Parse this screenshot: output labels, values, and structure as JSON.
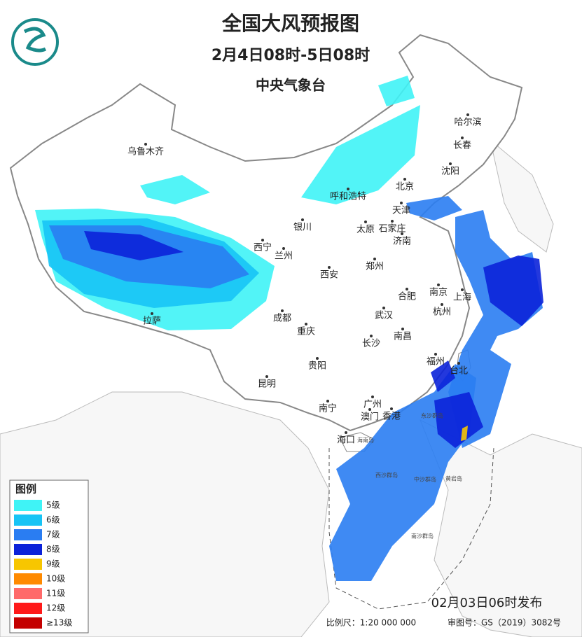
{
  "header": {
    "title": "全国大风预报图",
    "subtitle": "2月4日08时-5日08时",
    "agency": "中央气象台"
  },
  "legend": {
    "title": "图例",
    "items": [
      {
        "label": "5级",
        "color": "#3ff3f6"
      },
      {
        "label": "6级",
        "color": "#17c4f5"
      },
      {
        "label": "7级",
        "color": "#2a7df2"
      },
      {
        "label": "8级",
        "color": "#0b22d9"
      },
      {
        "label": "9级",
        "color": "#f7c600"
      },
      {
        "label": "10级",
        "color": "#ff8a00"
      },
      {
        "label": "11级",
        "color": "#ff6a6a"
      },
      {
        "label": "12级",
        "color": "#ff1a1a"
      },
      {
        "label": "≥13级",
        "color": "#c40000"
      }
    ]
  },
  "cities": [
    "哈尔滨",
    "长春",
    "乌鲁木齐",
    "沈阳",
    "北京",
    "呼和浩特",
    "天津",
    "银川",
    "太原",
    "石家庄",
    "济南",
    "西宁",
    "兰州",
    "郑州",
    "西安",
    "南京",
    "合肥",
    "上海",
    "杭州",
    "拉萨",
    "成都",
    "武汉",
    "重庆",
    "南昌",
    "长沙",
    "福州",
    "台北",
    "贵阳",
    "昆明",
    "南宁",
    "广州",
    "澳门",
    "香港",
    "海口"
  ],
  "islands": [
    "东沙群岛",
    "海南岛",
    "西沙群岛",
    "中沙群岛",
    "黄岩岛",
    "南沙群岛"
  ],
  "footer": {
    "issued": "02月03日06时发布",
    "scale": "比例尺：1:20 000 000",
    "review": "审图号：GS（2019）3082号"
  }
}
